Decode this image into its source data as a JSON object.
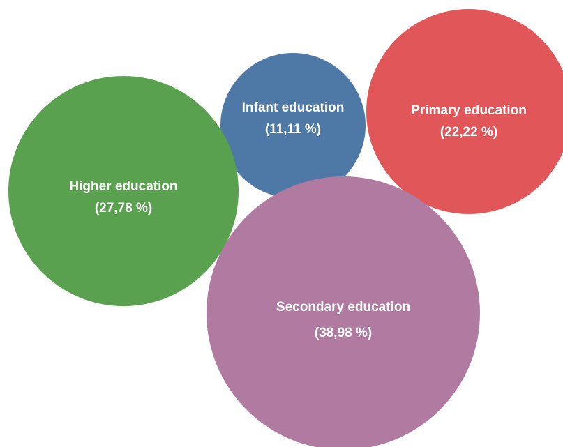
{
  "chart_data": {
    "type": "bubble",
    "title": "",
    "series": [
      {
        "name": "Infant education",
        "percent_label": "(11,11 %)",
        "value": 11.11,
        "color": "#4e78a6"
      },
      {
        "name": "Primary education",
        "percent_label": "(22,22 %)",
        "value": 22.22,
        "color": "#e15759"
      },
      {
        "name": "Higher education",
        "percent_label": "(27,78 %)",
        "value": 27.78,
        "color": "#59a14f"
      },
      {
        "name": "Secondary education",
        "percent_label": "(38,98 %)",
        "value": 38.98,
        "color": "#b07aa1"
      }
    ]
  }
}
